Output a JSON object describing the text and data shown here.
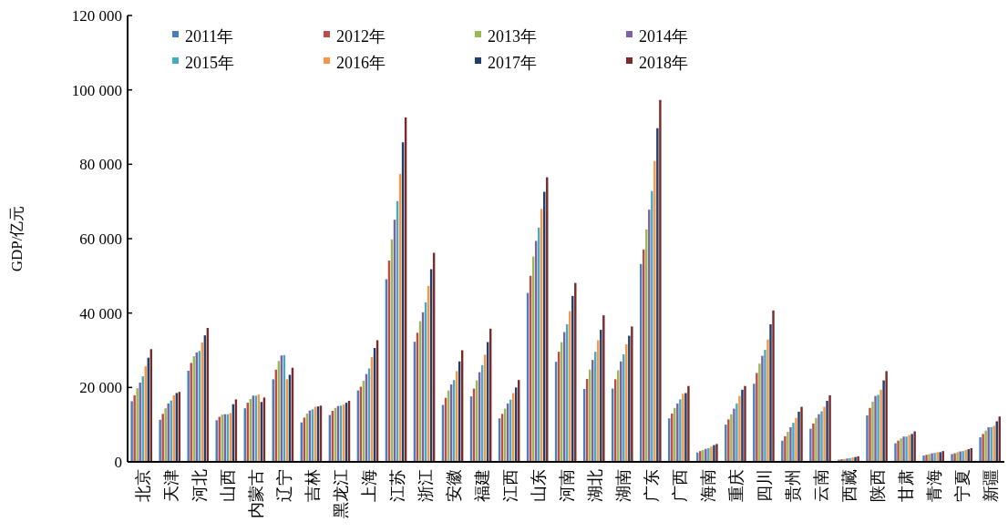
{
  "chart_data": {
    "type": "bar",
    "ylabel": "GDP/亿元",
    "legend": "top",
    "ylim": [
      0,
      120000
    ],
    "yticks": [
      {
        "value": 0,
        "label": "0"
      },
      {
        "value": 20000,
        "label": "20 000"
      },
      {
        "value": 40000,
        "label": "40 000"
      },
      {
        "value": 60000,
        "label": "60 000"
      },
      {
        "value": 80000,
        "label": "80 000"
      },
      {
        "value": 100000,
        "label": "100 000"
      },
      {
        "value": 120000,
        "label": "120 000"
      }
    ],
    "categories": [
      "北京",
      "天津",
      "河北",
      "山西",
      "内蒙古",
      "辽宁",
      "吉林",
      "黑龙江",
      "上海",
      "江苏",
      "浙江",
      "安徽",
      "福建",
      "江西",
      "山东",
      "河南",
      "湖北",
      "湖南",
      "广东",
      "广西",
      "海南",
      "重庆",
      "四川",
      "贵州",
      "云南",
      "西藏",
      "陕西",
      "甘肃",
      "青海",
      "宁夏",
      "新疆"
    ],
    "series": [
      {
        "name": "2011年",
        "color": "#4a7ebb",
        "values": [
          16300,
          11300,
          24500,
          11200,
          14400,
          22200,
          10600,
          12600,
          19200,
          49100,
          32300,
          15300,
          17600,
          11700,
          45400,
          26900,
          19600,
          19700,
          53200,
          11700,
          2500,
          10000,
          21000,
          5700,
          8900,
          600,
          12500,
          5000,
          1700,
          2100,
          6600
        ]
      },
      {
        "name": "2012年",
        "color": "#be4b48",
        "values": [
          17900,
          12900,
          26600,
          12100,
          15900,
          24800,
          11900,
          13700,
          20200,
          54100,
          34700,
          17200,
          19700,
          12900,
          50000,
          29600,
          22300,
          22200,
          57100,
          13000,
          2900,
          11400,
          23900,
          6900,
          10300,
          700,
          14500,
          5700,
          1900,
          2300,
          7500
        ]
      },
      {
        "name": "2013年",
        "color": "#98b954",
        "values": [
          19800,
          14400,
          28400,
          12700,
          16900,
          27100,
          13000,
          14500,
          21800,
          59800,
          37800,
          19200,
          21900,
          14300,
          55200,
          32200,
          24800,
          24600,
          62500,
          14500,
          3200,
          12800,
          26400,
          8100,
          11800,
          800,
          16200,
          6300,
          2100,
          2600,
          8400
        ]
      },
      {
        "name": "2014年",
        "color": "#7d60a0",
        "values": [
          21300,
          15700,
          29400,
          12800,
          17800,
          28600,
          13800,
          15000,
          23600,
          65100,
          40200,
          20800,
          24100,
          15700,
          59400,
          34900,
          27400,
          27000,
          67800,
          15700,
          3500,
          14300,
          28500,
          9300,
          12800,
          900,
          17700,
          6800,
          2300,
          2800,
          9300
        ]
      },
      {
        "name": "2015年",
        "color": "#46aac5",
        "values": [
          23000,
          16500,
          29800,
          12800,
          17800,
          28700,
          14100,
          15100,
          25100,
          70100,
          42900,
          22000,
          26000,
          16700,
          63000,
          37000,
          29600,
          28900,
          72800,
          16800,
          3700,
          15700,
          30100,
          10500,
          13600,
          1000,
          18000,
          6800,
          2400,
          2900,
          9300
        ]
      },
      {
        "name": "2016年",
        "color": "#f79646",
        "values": [
          25700,
          17900,
          32100,
          13100,
          18100,
          22200,
          14800,
          15400,
          28200,
          77400,
          47300,
          24400,
          28800,
          18500,
          68000,
          40500,
          32700,
          31600,
          80900,
          18300,
          4100,
          17700,
          32900,
          11800,
          14800,
          1200,
          19400,
          7200,
          2600,
          3200,
          9700
        ]
      },
      {
        "name": "2017年",
        "color": "#1f3e6a",
        "values": [
          28000,
          18500,
          34000,
          15500,
          16100,
          23400,
          14900,
          15900,
          30600,
          85900,
          51800,
          27000,
          32200,
          20000,
          72600,
          44600,
          35500,
          33900,
          89700,
          18500,
          4500,
          19400,
          37000,
          13500,
          16400,
          1300,
          21900,
          7500,
          2600,
          3400,
          10900
        ]
      },
      {
        "name": "2018年",
        "color": "#7b2a2a",
        "values": [
          30300,
          18800,
          36000,
          16800,
          17300,
          25300,
          15100,
          16400,
          32700,
          92600,
          56200,
          30000,
          35800,
          22000,
          76500,
          48100,
          39400,
          36400,
          97300,
          20400,
          4800,
          20400,
          40700,
          14800,
          17900,
          1500,
          24400,
          8200,
          2900,
          3700,
          12200
        ]
      }
    ]
  }
}
